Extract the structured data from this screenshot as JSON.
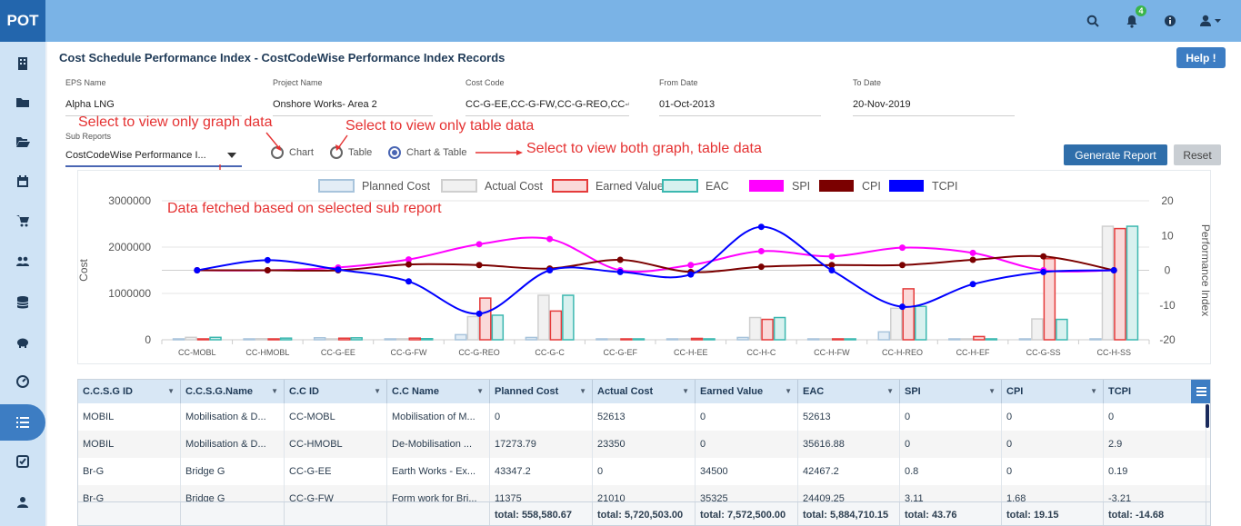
{
  "app": {
    "logo": "POT",
    "notification_count": "4"
  },
  "sidebar_icons": [
    "building-icon",
    "folder-icon",
    "folder-open-icon",
    "calendar-icon",
    "cart-icon",
    "users-icon",
    "database-icon",
    "piggy-bank-icon",
    "dashboard-icon",
    "list-icon",
    "checkbox-icon",
    "user-icon"
  ],
  "page": {
    "title": "Cost Schedule Performance Index - CostCodeWise Performance Index Records",
    "help_label": "Help !"
  },
  "filters": {
    "eps": {
      "label": "EPS Name",
      "value": "Alpha LNG"
    },
    "project": {
      "label": "Project Name",
      "value": "Onshore  Works- Area 2"
    },
    "cost_code": {
      "label": "Cost Code",
      "value": "CC-G-EE,CC-G-FW,CC-G-REO,CC-G-C,"
    },
    "from_date": {
      "label": "From Date",
      "value": "01-Oct-2013"
    },
    "to_date": {
      "label": "To Date",
      "value": "20-Nov-2019"
    },
    "sub_reports": {
      "label": "Sub Reports",
      "value": "CostCodeWise Performance I..."
    }
  },
  "view_options": {
    "chart": "Chart",
    "table": "Table",
    "both": "Chart & Table",
    "selected": "both"
  },
  "buttons": {
    "generate": "Generate Report",
    "reset": "Reset"
  },
  "annotations": {
    "graph_only": "Select to view only graph data",
    "table_only": "Select to view only table data",
    "both": "Select to view both graph, table data",
    "sub_report": "Data fetched based on selected sub report"
  },
  "colors": {
    "annotation": "#e53232",
    "spi": "#ff00ff",
    "cpi": "#7b0000",
    "tcpi": "#0000ff",
    "planned": "#a8c4dc",
    "actual": "#cfcfcf",
    "earned": "#e53b3b",
    "eac": "#3cb8b0"
  },
  "chart_data": {
    "type": "bar",
    "categories": [
      "CC-MOBL",
      "CC-HMOBL",
      "CC-G-EE",
      "CC-G-FW",
      "CC-G-REO",
      "CC-G-C",
      "CC-G-EF",
      "CC-H-EE",
      "CC-H-C",
      "CC-H-FW",
      "CC-H-REO",
      "CC-H-EF",
      "CC-G-SS",
      "CC-H-SS"
    ],
    "ylabel": "Cost",
    "y2label": "Performance Index",
    "ylim": [
      0,
      3000000
    ],
    "y2lim": [
      -20,
      20
    ],
    "yticks": [
      "3000000",
      "2000000",
      "1000000",
      "0"
    ],
    "y2ticks": [
      "20",
      "10",
      "0",
      "-10",
      "-20"
    ],
    "legend_position": "top",
    "series": [
      {
        "name": "Planned Cost",
        "kind": "bar",
        "values": [
          0,
          17274,
          43347,
          11375,
          110000,
          50000,
          5000,
          5000,
          50000,
          5000,
          170000,
          5000,
          5000,
          20000
        ]
      },
      {
        "name": "Actual Cost",
        "kind": "bar",
        "values": [
          52613,
          23350,
          0,
          21010,
          500000,
          960000,
          5000,
          20000,
          480000,
          5000,
          680000,
          15000,
          450000,
          2450000
        ]
      },
      {
        "name": "Earned Value",
        "kind": "bar",
        "values": [
          0,
          0,
          34500,
          35325,
          900000,
          620000,
          5000,
          30000,
          440000,
          20000,
          1100000,
          70000,
          1750000,
          2400000
        ]
      },
      {
        "name": "EAC",
        "kind": "bar",
        "values": [
          52613,
          35617,
          42467,
          24409,
          530000,
          960000,
          10000,
          20000,
          480000,
          15000,
          720000,
          20000,
          440000,
          2450000
        ]
      },
      {
        "name": "SPI",
        "kind": "line",
        "values": [
          0,
          0,
          0.8,
          3.11,
          7.5,
          9,
          0,
          1.5,
          5.5,
          4,
          6.5,
          5,
          0,
          0
        ]
      },
      {
        "name": "CPI",
        "kind": "line",
        "values": [
          0,
          0,
          0,
          1.68,
          1.5,
          0.5,
          3,
          -0.5,
          1,
          1.5,
          1.5,
          3,
          4,
          0
        ]
      },
      {
        "name": "TCPI",
        "kind": "line",
        "values": [
          0,
          2.9,
          0.19,
          -3.21,
          -12.5,
          0,
          -0.5,
          -1.2,
          12.5,
          0,
          -10.5,
          -4,
          -0.5,
          0
        ]
      }
    ]
  },
  "table": {
    "columns": [
      "C.C.S.G ID",
      "C.C.S.G.Name",
      "C.C ID",
      "C.C Name",
      "Planned Cost",
      "Actual Cost",
      "Earned Value",
      "EAC",
      "SPI",
      "CPI",
      "TCPI"
    ],
    "rows": [
      [
        "MOBIL",
        "Mobilisation & D...",
        "CC-MOBL",
        "Mobilisation of M...",
        "0",
        "52613",
        "0",
        "52613",
        "0",
        "0",
        "0"
      ],
      [
        "MOBIL",
        "Mobilisation & D...",
        "CC-HMOBL",
        "De-Mobilisation ...",
        "17273.79",
        "23350",
        "0",
        "35616.88",
        "0",
        "0",
        "2.9"
      ],
      [
        "Br-G",
        "Bridge G",
        "CC-G-EE",
        "Earth Works - Ex...",
        "43347.2",
        "0",
        "34500",
        "42467.2",
        "0.8",
        "0",
        "0.19"
      ],
      [
        "Br-G",
        "Bridge G",
        "CC-G-FW",
        "Form work for Bri...",
        "11375",
        "21010",
        "35325",
        "24409.25",
        "3.11",
        "1.68",
        "-3.21"
      ]
    ],
    "totals": [
      "",
      "",
      "",
      "",
      "total: 558,580.67",
      "total: 5,720,503.00",
      "total: 7,572,500.00",
      "total: 5,884,710.15",
      "total: 43.76",
      "total: 19.15",
      "total: -14.68"
    ]
  }
}
